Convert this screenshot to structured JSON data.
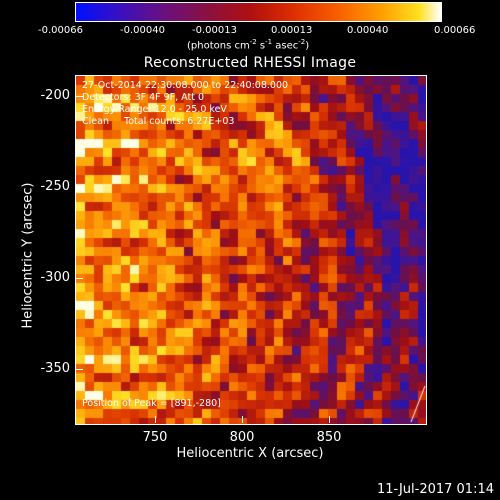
{
  "colorbar": {
    "tick_labels": [
      "-0.00066",
      "-0.00040",
      "-0.00013",
      "0.00013",
      "0.00040",
      "0.00066"
    ],
    "units_prefix": "(photons cm",
    "units_exp1": "-2",
    "units_mid": " s",
    "units_exp2": "-1",
    "units_mid2": " asec",
    "units_exp3": "-2",
    "units_suffix": ")"
  },
  "title": "Reconstructed RHESSI Image",
  "info": {
    "line1": "27-Oct-2014 22:30:08.000 to 22:40:08.000",
    "line2": "Detectors: 3F 4F 9F, Att 0",
    "line3": "Energy Range: 12.0 - 25.0 keV",
    "line4": "Clean     Total counts: 6.27E+03",
    "peak": "Position of Peak = [891,-280]"
  },
  "axes": {
    "xlabel": "Heliocentric X (arcsec)",
    "ylabel": "Heliocentric Y (arcsec)",
    "xticks": [
      "750",
      "800",
      "850"
    ],
    "yticks": [
      "-200",
      "-250",
      "-300",
      "-350"
    ]
  },
  "datestamp": "11-Jul-2017 01:14"
}
